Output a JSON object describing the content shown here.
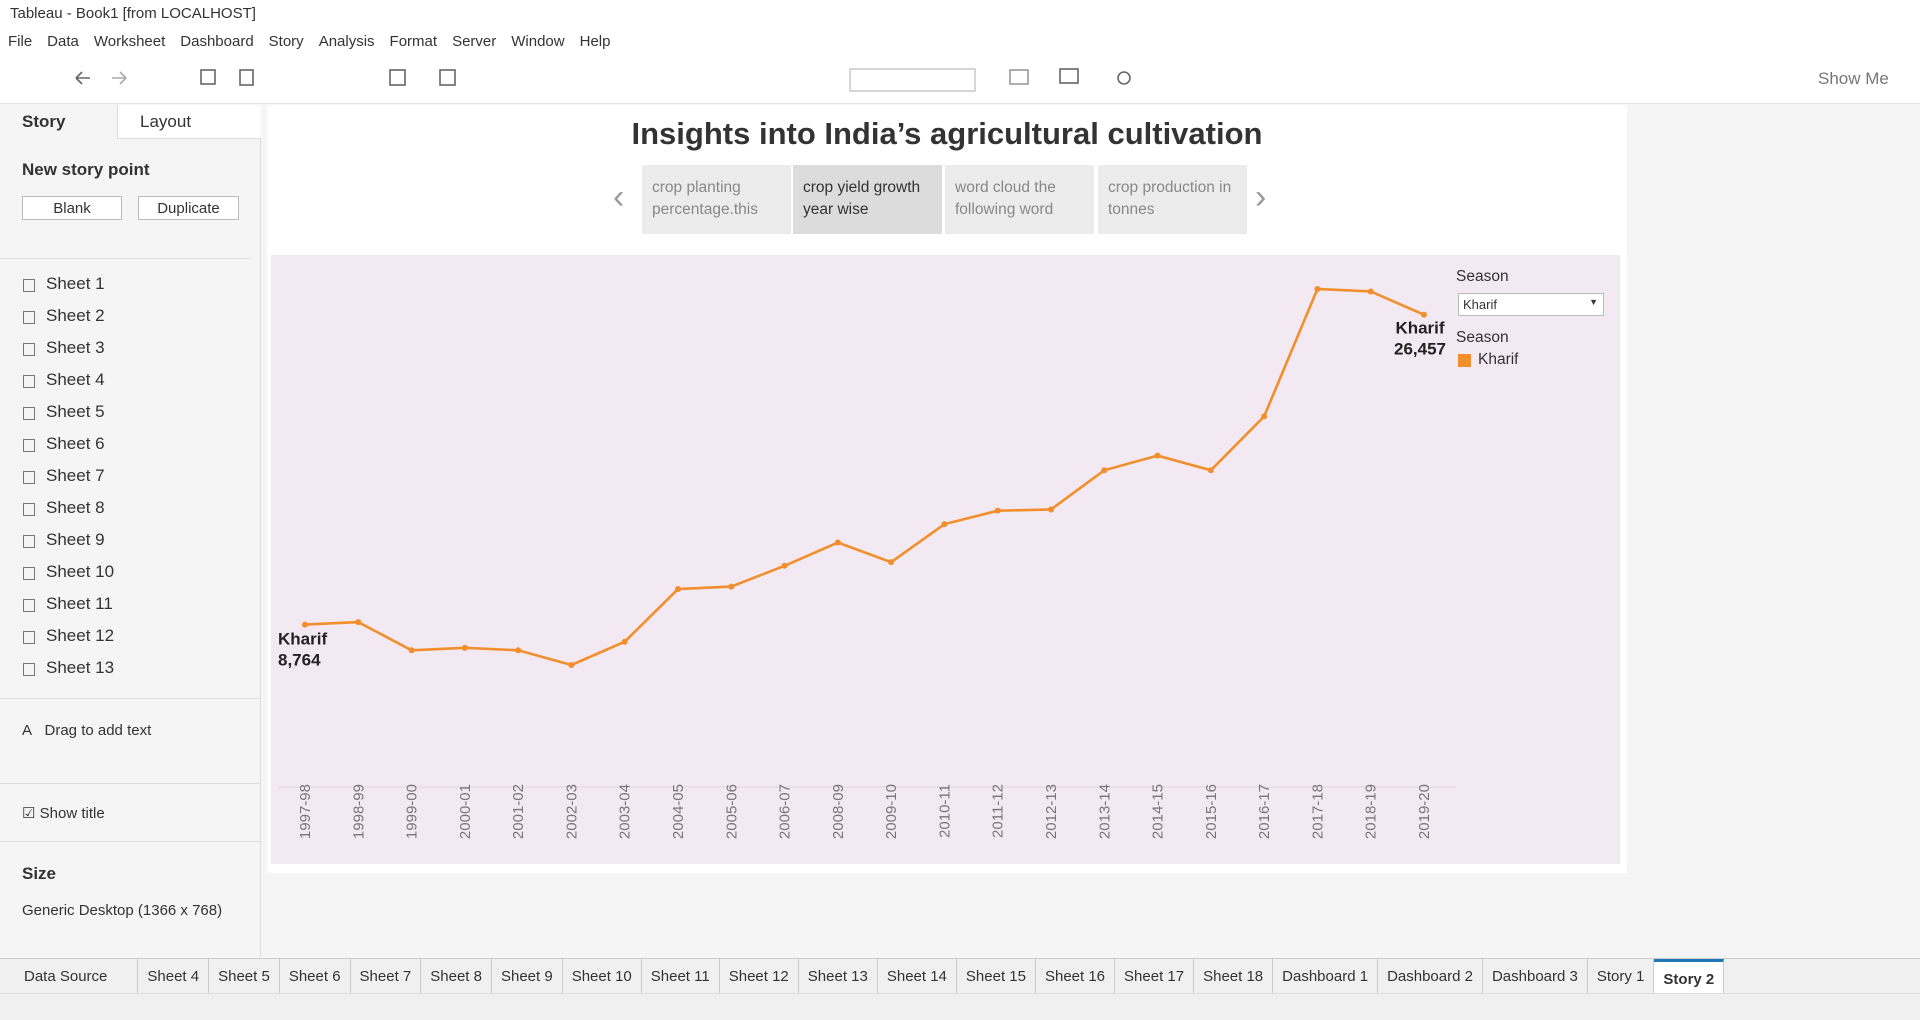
{
  "window": {
    "title": "Tableau - Book1 [from LOCALHOST]"
  },
  "menu": [
    "File",
    "Data",
    "Worksheet",
    "Dashboard",
    "Story",
    "Analysis",
    "Format",
    "Server",
    "Window",
    "Help"
  ],
  "toolbar": {
    "show_me": "Show Me"
  },
  "sidebar": {
    "tabs": [
      "Story",
      "Layout"
    ],
    "new_story_point": "New story point",
    "buttons": [
      "Blank",
      "Duplicate"
    ],
    "sheets": [
      "Sheet 1",
      "Sheet 2",
      "Sheet 3",
      "Sheet 4",
      "Sheet 5",
      "Sheet 6",
      "Sheet 7",
      "Sheet 8",
      "Sheet 9",
      "Sheet 10",
      "Sheet 11",
      "Sheet 12",
      "Sheet 13"
    ],
    "drag_text": "Drag to add text",
    "show_title": "Show title",
    "size_heading": "Size",
    "size_value": "Generic Desktop (1366 x 768)"
  },
  "story": {
    "title": "Insights into India’s agricultural cultivation",
    "points": [
      "crop planting percentage.this",
      "crop yield growth year wise",
      "word cloud the following word",
      "crop production in tonnes"
    ],
    "active": 1
  },
  "chart_data": {
    "type": "line",
    "categories": [
      "1997-98",
      "1998-99",
      "1999-00",
      "2000-01",
      "2001-02",
      "2002-03",
      "2003-04",
      "2004-05",
      "2005-06",
      "2006-07",
      "2008-09",
      "2009-10",
      "2010-11",
      "2011-12",
      "2012-13",
      "2013-14",
      "2014-15",
      "2015-16",
      "2016-17",
      "2017-18",
      "2018-19",
      "2019-20"
    ],
    "series": [
      {
        "name": "Kharif",
        "color": "#f28e2b",
        "values": [
          8764,
          8904,
          7296,
          7435,
          7296,
          6456,
          7785,
          10792,
          10932,
          12121,
          13449,
          12330,
          14498,
          15267,
          15337,
          17575,
          18414,
          17575,
          20652,
          27925,
          27785,
          26457
        ],
        "value_labels": [
          "8,764",
          null,
          null,
          null,
          null,
          null,
          null,
          null,
          null,
          null,
          null,
          null,
          null,
          null,
          null,
          null,
          null,
          null,
          null,
          null,
          null,
          "26,457"
        ]
      }
    ],
    "filter": {
      "title": "Season",
      "value": "Kharif"
    },
    "legend": {
      "title": "Season"
    }
  },
  "bottom_tabs": [
    "Data Source",
    "Sheet 4",
    "Sheet 5",
    "Sheet 6",
    "Sheet 7",
    "Sheet 8",
    "Sheet 9",
    "Sheet 10",
    "Sheet 11",
    "Sheet 12",
    "Sheet 13",
    "Sheet 14",
    "Sheet 15",
    "Sheet 16",
    "Sheet 17",
    "Sheet 18",
    "Dashboard 1",
    "Dashboard 2",
    "Dashboard 3",
    "Story 1",
    "Story 2"
  ],
  "active_tab": 20
}
